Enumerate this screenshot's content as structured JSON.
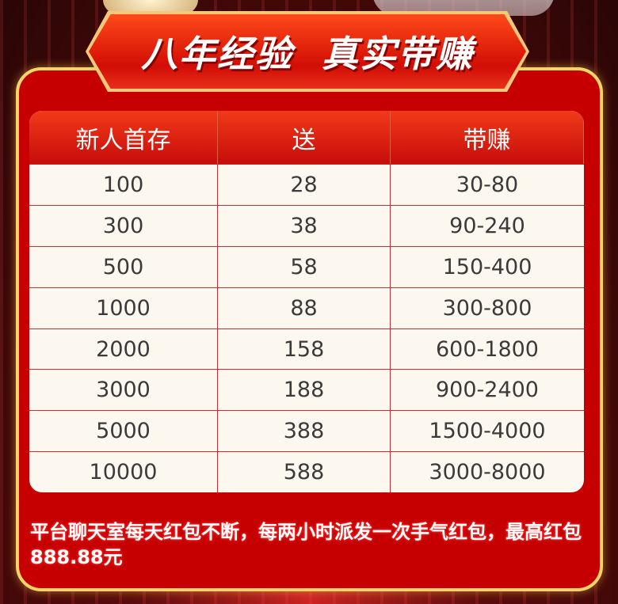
{
  "banner": {
    "title": "八年经验  真实带赚"
  },
  "table": {
    "headers": [
      "新人首存",
      "送",
      "带赚"
    ],
    "rows": [
      [
        "100",
        "28",
        "30-80"
      ],
      [
        "300",
        "38",
        "90-240"
      ],
      [
        "500",
        "58",
        "150-400"
      ],
      [
        "1000",
        "88",
        "300-800"
      ],
      [
        "2000",
        "158",
        "600-1800"
      ],
      [
        "3000",
        "188",
        "900-2400"
      ],
      [
        "5000",
        "388",
        "1500-4000"
      ],
      [
        "10000",
        "588",
        "3000-8000"
      ]
    ]
  },
  "note": "平台聊天室每天红包不断，每两小时派发一次手气红包，最高红包888.88元",
  "colors": {
    "panel": "#c60000",
    "border": "#f5d46a",
    "header": "#e52a12",
    "row_bg": "#fdf8ef"
  }
}
